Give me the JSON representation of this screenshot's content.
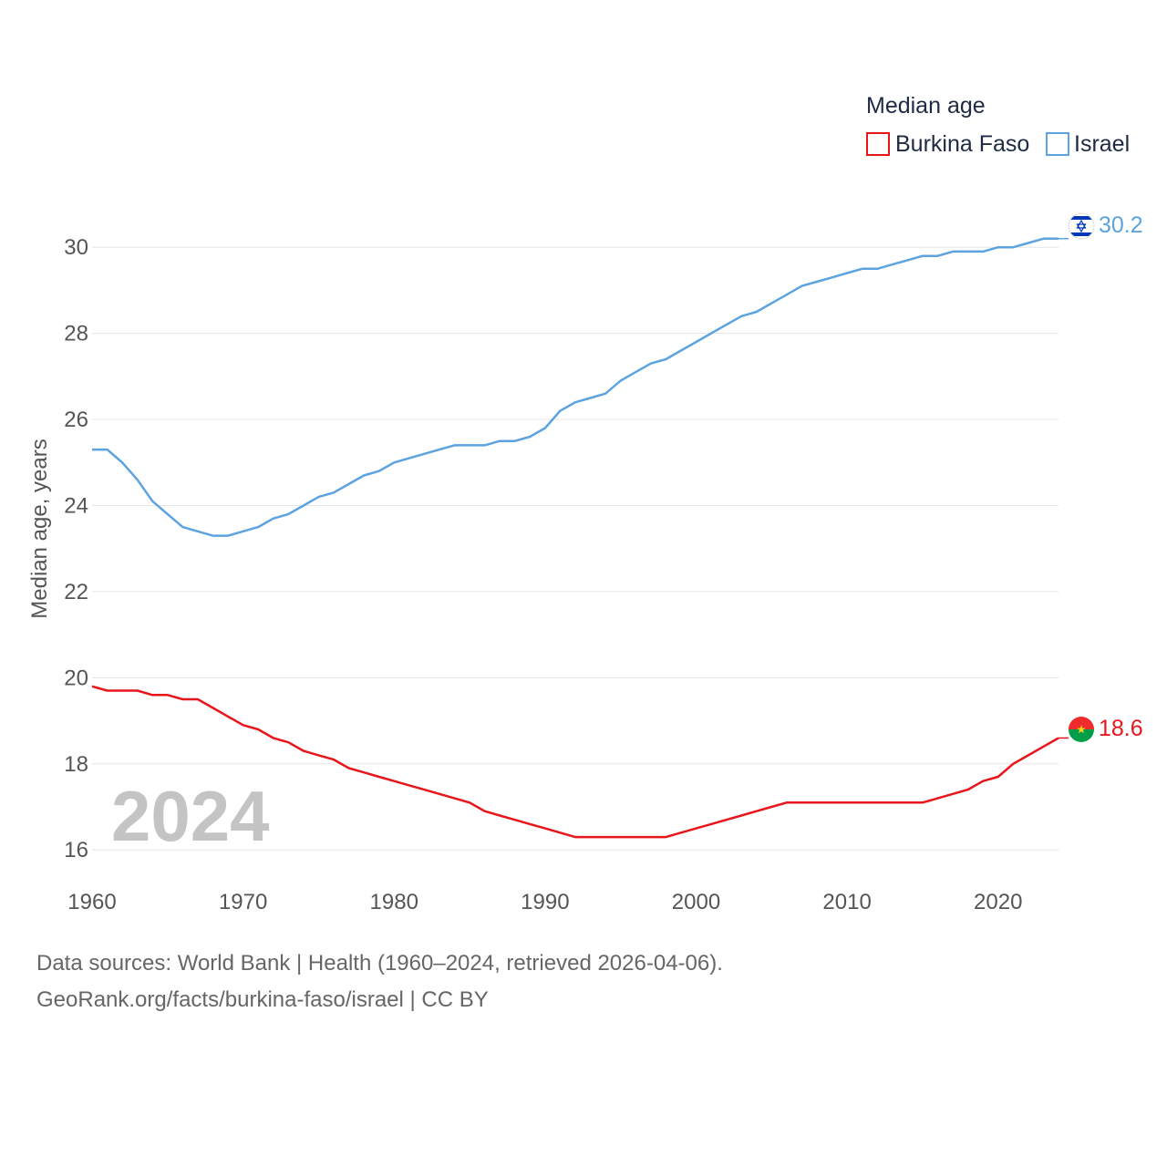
{
  "chart_data": {
    "type": "line",
    "legend_title": "Median age",
    "legend_position": "top-right",
    "ylabel": "Median age, years",
    "xlabel": "",
    "xlim": [
      1960,
      2024
    ],
    "ylim": [
      15.2,
      31
    ],
    "y_ticks": [
      16,
      18,
      20,
      22,
      24,
      26,
      28,
      30
    ],
    "x_ticks": [
      1960,
      1970,
      1980,
      1990,
      2000,
      2010,
      2020
    ],
    "grid": true,
    "year_label": "2024",
    "x": [
      1960,
      1961,
      1962,
      1963,
      1964,
      1965,
      1966,
      1967,
      1968,
      1969,
      1970,
      1971,
      1972,
      1973,
      1974,
      1975,
      1976,
      1977,
      1978,
      1979,
      1980,
      1981,
      1982,
      1983,
      1984,
      1985,
      1986,
      1987,
      1988,
      1989,
      1990,
      1991,
      1992,
      1993,
      1994,
      1995,
      1996,
      1997,
      1998,
      1999,
      2000,
      2001,
      2002,
      2003,
      2004,
      2005,
      2006,
      2007,
      2008,
      2009,
      2010,
      2011,
      2012,
      2013,
      2014,
      2015,
      2016,
      2017,
      2018,
      2019,
      2020,
      2021,
      2022,
      2023,
      2024
    ],
    "series": [
      {
        "name": "Burkina Faso",
        "color": "#e8161b",
        "end_label": "18.6",
        "flag": "burkina-faso-flag",
        "values": [
          19.8,
          19.7,
          19.7,
          19.7,
          19.6,
          19.6,
          19.5,
          19.5,
          19.3,
          19.1,
          18.9,
          18.8,
          18.6,
          18.5,
          18.3,
          18.2,
          18.1,
          17.9,
          17.8,
          17.7,
          17.6,
          17.5,
          17.4,
          17.3,
          17.2,
          17.1,
          16.9,
          16.8,
          16.7,
          16.6,
          16.5,
          16.4,
          16.3,
          16.3,
          16.3,
          16.3,
          16.3,
          16.3,
          16.3,
          16.4,
          16.5,
          16.6,
          16.7,
          16.8,
          16.9,
          17.0,
          17.1,
          17.1,
          17.1,
          17.1,
          17.1,
          17.1,
          17.1,
          17.1,
          17.1,
          17.1,
          17.2,
          17.3,
          17.4,
          17.6,
          17.7,
          18.0,
          18.2,
          18.4,
          18.6
        ]
      },
      {
        "name": "Israel",
        "color": "#5ca3e0",
        "end_label": "30.2",
        "flag": "israel-flag",
        "values": [
          25.3,
          25.3,
          25.0,
          24.6,
          24.1,
          23.8,
          23.5,
          23.4,
          23.3,
          23.3,
          23.4,
          23.5,
          23.7,
          23.8,
          24.0,
          24.2,
          24.3,
          24.5,
          24.7,
          24.8,
          25.0,
          25.1,
          25.2,
          25.3,
          25.4,
          25.4,
          25.4,
          25.5,
          25.5,
          25.6,
          25.8,
          26.2,
          26.4,
          26.5,
          26.6,
          26.9,
          27.1,
          27.3,
          27.4,
          27.6,
          27.8,
          28.0,
          28.2,
          28.4,
          28.5,
          28.7,
          28.9,
          29.1,
          29.2,
          29.3,
          29.4,
          29.5,
          29.5,
          29.6,
          29.7,
          29.8,
          29.8,
          29.9,
          29.9,
          29.9,
          30.0,
          30.0,
          30.1,
          30.2,
          30.2
        ]
      }
    ]
  },
  "footer": {
    "source_line": "Data sources: World Bank | Health (1960–2024, retrieved 2026-04-06).",
    "attribution_line": "GeoRank.org/facts/burkina-faso/israel | CC BY"
  }
}
